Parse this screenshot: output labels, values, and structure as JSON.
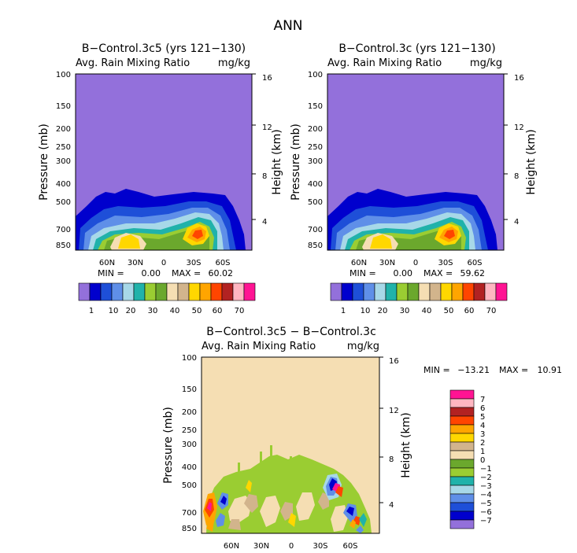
{
  "figure_title": "ANN",
  "colors": {
    "control_palette": [
      "#9370DB",
      "#0000CD",
      "#1E4FD8",
      "#5F8FE8",
      "#A7D8E8",
      "#20B2AA",
      "#9ACD32",
      "#6BA82D",
      "#F5DEB3",
      "#D2B48C",
      "#FFD700",
      "#FFA500",
      "#FF4500",
      "#B22222",
      "#FFB6C1",
      "#FF1493"
    ],
    "diff_palette": [
      "#9370DB",
      "#0000CD",
      "#1E4FD8",
      "#5F8FE8",
      "#A7D8E8",
      "#20B2AA",
      "#9ACD32",
      "#6BA82D",
      "#F5DEB3",
      "#D2B48C",
      "#FFD700",
      "#FFA500",
      "#FF4500",
      "#B22222",
      "#FFB6C1",
      "#FF1493"
    ]
  },
  "chart_data": [
    {
      "type": "heatmap",
      "title": "B−Control.3c5 (yrs 121−130)",
      "subtitle_left": "Avg. Rain Mixing Ratio",
      "subtitle_right": "mg/kg",
      "ylabel": "Pressure (mb)",
      "y2label": "Height (km)",
      "y_ticks": [
        "100",
        "150",
        "200",
        "250",
        "300",
        "400",
        "500",
        "700",
        "850"
      ],
      "y2_ticks": [
        "16",
        "12",
        "8",
        "4"
      ],
      "x_ticks": [
        "60N",
        "30N",
        "0",
        "30S",
        "60S"
      ],
      "min_label": "MIN =",
      "min_value": "0.00",
      "max_label": "MAX =",
      "max_value": "60.02",
      "colorbar_labels": [
        "1",
        "10",
        "20",
        "30",
        "40",
        "50",
        "60",
        "70"
      ]
    },
    {
      "type": "heatmap",
      "title": "B−Control.3c (yrs 121−130)",
      "subtitle_left": "Avg. Rain Mixing Ratio",
      "subtitle_right": "mg/kg",
      "ylabel": "Pressure (mb)",
      "y2label": "Height (km)",
      "y_ticks": [
        "100",
        "150",
        "200",
        "250",
        "300",
        "400",
        "500",
        "700",
        "850"
      ],
      "y2_ticks": [
        "16",
        "12",
        "8",
        "4"
      ],
      "x_ticks": [
        "60N",
        "30N",
        "0",
        "30S",
        "60S"
      ],
      "min_label": "MIN =",
      "min_value": "0.00",
      "max_label": "MAX =",
      "max_value": "59.62",
      "colorbar_labels": [
        "1",
        "10",
        "20",
        "30",
        "40",
        "50",
        "60",
        "70"
      ]
    },
    {
      "type": "heatmap",
      "title": "B−Control.3c5 − B−Control.3c",
      "subtitle_left": "Avg. Rain Mixing Ratio",
      "subtitle_right": "mg/kg",
      "ylabel": "Pressure (mb)",
      "y2label": "Height (km)",
      "y_ticks": [
        "100",
        "150",
        "200",
        "250",
        "300",
        "400",
        "500",
        "700",
        "850"
      ],
      "y2_ticks": [
        "16",
        "12",
        "8",
        "4"
      ],
      "x_ticks": [
        "60N",
        "30N",
        "0",
        "30S",
        "60S"
      ],
      "min_label": "MIN =",
      "min_value": "−13.21",
      "max_label": "MAX =",
      "max_value": "10.91",
      "colorbar_labels": [
        "7",
        "6",
        "5",
        "4",
        "3",
        "2",
        "1",
        "0",
        "−1",
        "−2",
        "−3",
        "−4",
        "−5",
        "−6",
        "−7"
      ]
    }
  ]
}
